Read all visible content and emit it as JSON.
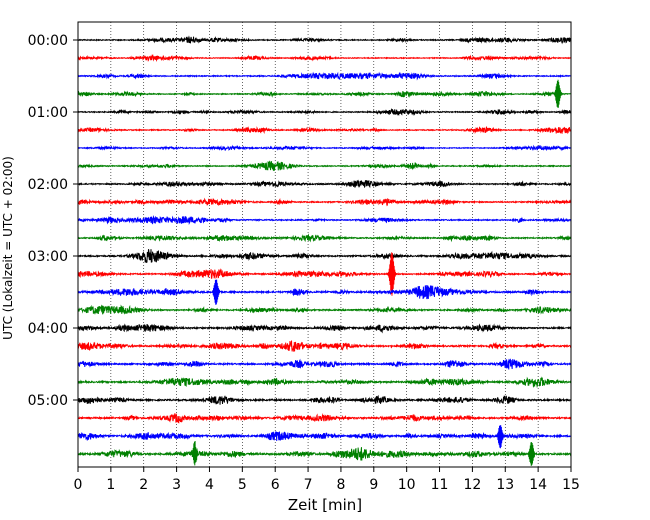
{
  "chart_data": {
    "type": "line",
    "title": "",
    "xlabel": "Zeit  [min]",
    "ylabel": "UTC (Lokalzeit = UTC + 02:00)",
    "xlim": [
      0,
      15
    ],
    "x_ticks": [
      "0",
      "1",
      "2",
      "3",
      "4",
      "5",
      "6",
      "7",
      "8",
      "9",
      "10",
      "11",
      "12",
      "13",
      "14",
      "15"
    ],
    "y_tick_labels": [
      "00:00",
      "01:00",
      "02:00",
      "03:00",
      "04:00",
      "05:00"
    ],
    "grid": "vertical dotted lines at each minute",
    "trace_minutes": 15,
    "trace_colors": [
      "#000000",
      "#ff0000",
      "#0000ff",
      "#008000"
    ],
    "series": [
      {
        "start": "00:00",
        "amplitude": 0.3
      },
      {
        "start": "00:15",
        "amplitude": 0.25
      },
      {
        "start": "00:30",
        "amplitude": 0.32
      },
      {
        "start": "00:45",
        "amplitude": 0.28,
        "spikes": [
          {
            "minute": 14.6,
            "amplitude": 1.4
          }
        ]
      },
      {
        "start": "01:00",
        "amplitude": 0.3
      },
      {
        "start": "01:15",
        "amplitude": 0.28
      },
      {
        "start": "01:30",
        "amplitude": 0.25
      },
      {
        "start": "01:45",
        "amplitude": 0.3
      },
      {
        "start": "02:00",
        "amplitude": 0.35
      },
      {
        "start": "02:15",
        "amplitude": 0.35
      },
      {
        "start": "02:30",
        "amplitude": 0.35
      },
      {
        "start": "02:45",
        "amplitude": 0.35
      },
      {
        "start": "03:00",
        "amplitude": 0.4
      },
      {
        "start": "03:15",
        "amplitude": 0.4,
        "spikes": [
          {
            "minute": 9.55,
            "amplitude": 2.2
          }
        ]
      },
      {
        "start": "03:30",
        "amplitude": 0.45,
        "spikes": [
          {
            "minute": 4.2,
            "amplitude": 1.3
          }
        ]
      },
      {
        "start": "03:45",
        "amplitude": 0.4
      },
      {
        "start": "04:00",
        "amplitude": 0.45
      },
      {
        "start": "04:15",
        "amplitude": 0.45
      },
      {
        "start": "04:30",
        "amplitude": 0.45
      },
      {
        "start": "04:45",
        "amplitude": 0.45
      },
      {
        "start": "05:00",
        "amplitude": 0.45
      },
      {
        "start": "05:15",
        "amplitude": 0.45
      },
      {
        "start": "05:30",
        "amplitude": 0.45,
        "spikes": [
          {
            "minute": 12.85,
            "amplitude": 1.2
          }
        ]
      },
      {
        "start": "05:45",
        "amplitude": 0.5,
        "spikes": [
          {
            "minute": 3.55,
            "amplitude": 1.1
          },
          {
            "minute": 13.8,
            "amplitude": 1.2
          }
        ]
      }
    ]
  }
}
